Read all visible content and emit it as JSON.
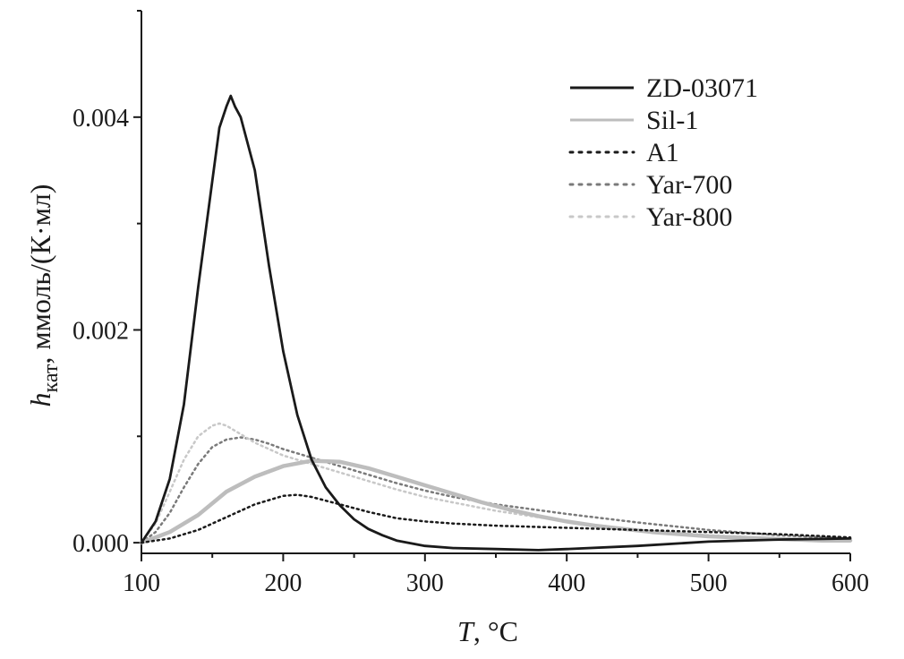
{
  "chart_data": {
    "type": "line",
    "xlabel": "T, °C",
    "xlabel_italic": "T",
    "xlabel_rest": ", °C",
    "ylabel_italic": "h",
    "ylabel_sub": "кат",
    "ylabel_rest": ", ммоль/(К·мл)",
    "xlim": [
      100,
      600
    ],
    "ylim": [
      -0.0001,
      0.005
    ],
    "x_ticks": [
      100,
      200,
      300,
      400,
      500,
      600
    ],
    "y_ticks": [
      0.0,
      0.002,
      0.004
    ],
    "x_tick_labels": [
      "100",
      "200",
      "300",
      "400",
      "500",
      "600"
    ],
    "y_tick_labels": [
      "0.000",
      "0.002",
      "0.004"
    ],
    "grid": false,
    "legend_position": "top-right",
    "series": [
      {
        "name": "ZD-03071",
        "color": "#1a1a1a",
        "style": "solid",
        "x": [
          100,
          110,
          120,
          130,
          140,
          150,
          155,
          160,
          163,
          166,
          170,
          180,
          190,
          200,
          210,
          220,
          230,
          240,
          250,
          260,
          270,
          280,
          300,
          320,
          350,
          380,
          400,
          450,
          500,
          550,
          600
        ],
        "y": [
          0.0,
          0.0002,
          0.0006,
          0.0013,
          0.0024,
          0.0034,
          0.0039,
          0.0041,
          0.0042,
          0.0041,
          0.004,
          0.0035,
          0.0026,
          0.0018,
          0.0012,
          0.00078,
          0.00052,
          0.00035,
          0.00022,
          0.00013,
          7e-05,
          2e-05,
          -3e-05,
          -5e-05,
          -6e-05,
          -7e-05,
          -6e-05,
          -3e-05,
          1e-05,
          3e-05,
          4e-05
        ]
      },
      {
        "name": "Sil-1",
        "color": "#bdbdbd",
        "style": "solid",
        "x": [
          100,
          120,
          140,
          160,
          180,
          200,
          220,
          240,
          260,
          280,
          300,
          320,
          340,
          360,
          380,
          400,
          420,
          440,
          460,
          480,
          500,
          520,
          540,
          560,
          580,
          600
        ],
        "y": [
          0.0,
          0.0001,
          0.00026,
          0.00048,
          0.00062,
          0.00072,
          0.00077,
          0.00076,
          0.0007,
          0.00062,
          0.00054,
          0.00046,
          0.00038,
          0.00031,
          0.00025,
          0.0002,
          0.00016,
          0.00013,
          0.0001,
          8e-05,
          6e-05,
          5e-05,
          4e-05,
          3e-05,
          2e-05,
          2e-05
        ]
      },
      {
        "name": "A1",
        "color": "#1a1a1a",
        "style": "dotted",
        "x": [
          100,
          120,
          140,
          160,
          180,
          200,
          210,
          220,
          240,
          260,
          280,
          300,
          320,
          350,
          400,
          450,
          500,
          550,
          600
        ],
        "y": [
          0.0,
          4e-05,
          0.00012,
          0.00024,
          0.00036,
          0.00044,
          0.00045,
          0.00043,
          0.00036,
          0.00029,
          0.00023,
          0.0002,
          0.00018,
          0.00016,
          0.00014,
          0.00012,
          0.0001,
          8e-05,
          5e-05
        ]
      },
      {
        "name": "Yar-700",
        "color": "#7a7a7a",
        "style": "dotted",
        "x": [
          100,
          110,
          120,
          130,
          140,
          150,
          160,
          170,
          180,
          190,
          200,
          220,
          240,
          260,
          280,
          300,
          320,
          350,
          400,
          450,
          500,
          550,
          600
        ],
        "y": [
          0.0,
          0.0001,
          0.00028,
          0.00052,
          0.00074,
          0.0009,
          0.00097,
          0.00099,
          0.00097,
          0.00093,
          0.00088,
          0.0008,
          0.00072,
          0.00064,
          0.00056,
          0.00049,
          0.00043,
          0.00036,
          0.00027,
          0.00019,
          0.00012,
          7e-05,
          4e-05
        ]
      },
      {
        "name": "Yar-800",
        "color": "#c8c8c8",
        "style": "dotted",
        "x": [
          100,
          110,
          120,
          130,
          140,
          150,
          155,
          160,
          170,
          180,
          200,
          220,
          240,
          260,
          280,
          300,
          350,
          400,
          450,
          500,
          550,
          600
        ],
        "y": [
          0.0,
          0.00018,
          0.00048,
          0.00078,
          0.001,
          0.0011,
          0.00112,
          0.0011,
          0.00102,
          0.00094,
          0.00082,
          0.00074,
          0.00066,
          0.00058,
          0.0005,
          0.00043,
          0.0003,
          0.0002,
          0.00012,
          7e-05,
          4e-05,
          2e-05
        ]
      }
    ]
  }
}
